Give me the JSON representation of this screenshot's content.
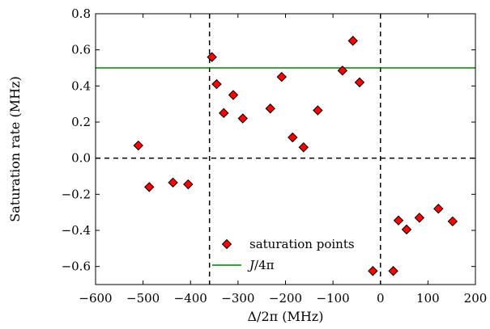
{
  "chart_data": {
    "type": "scatter",
    "xlabel": "Δ/2π  (MHz)",
    "ylabel": "Saturation rate  (MHz)",
    "xlim": [
      -600,
      200
    ],
    "ylim": [
      -0.7,
      0.8
    ],
    "xticks": [
      -600,
      -500,
      -400,
      -300,
      -200,
      -100,
      0,
      100,
      200
    ],
    "xtick_labels": [
      "−600",
      "−500",
      "−400",
      "−300",
      "−200",
      "−100",
      "0",
      "100",
      "200"
    ],
    "yticks": [
      -0.6,
      -0.4,
      -0.2,
      0.0,
      0.2,
      0.4,
      0.6,
      0.8
    ],
    "ytick_labels": [
      "−0.6",
      "−0.4",
      "−0.2",
      "0.0",
      "0.2",
      "0.4",
      "0.6",
      "0.8"
    ],
    "grid": false,
    "legend_position": "lower-center",
    "series": [
      {
        "name": "saturation points",
        "marker": "diamond",
        "color": "#ff0000",
        "x": [
          -510,
          -487,
          -437,
          -405,
          -355,
          -345,
          -330,
          -310,
          -290,
          -232,
          -208,
          -185,
          -162,
          -132,
          -80,
          -58,
          -44,
          -16,
          27,
          38,
          55,
          82,
          122,
          152
        ],
        "y": [
          0.07,
          -0.16,
          -0.135,
          -0.145,
          0.56,
          0.41,
          0.25,
          0.35,
          0.22,
          0.275,
          0.45,
          0.115,
          0.06,
          0.265,
          0.485,
          0.65,
          0.42,
          -0.625,
          -0.625,
          -0.345,
          -0.395,
          -0.33,
          -0.28,
          -0.35
        ]
      },
      {
        "name": "J/4π",
        "type": "hline",
        "color": "#008000",
        "y": 0.5
      }
    ],
    "reference_lines": [
      {
        "orientation": "vertical",
        "x": -360,
        "style": "dashed",
        "color": "#000000"
      },
      {
        "orientation": "vertical",
        "x": 0,
        "style": "dashed",
        "color": "#000000"
      },
      {
        "orientation": "horizontal",
        "y": 0,
        "style": "dashed",
        "color": "#000000"
      }
    ],
    "legend": {
      "entries": [
        {
          "label": "saturation points",
          "symbol": "diamond"
        },
        {
          "label": "J/4π",
          "label_italic_part": "J",
          "label_rest": "/4π",
          "symbol": "line"
        }
      ]
    }
  }
}
